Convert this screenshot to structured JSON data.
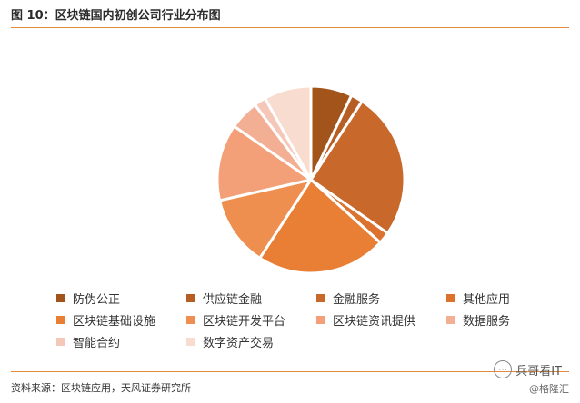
{
  "header": {
    "title": "图 10：区块链国内初创公司行业分布图"
  },
  "source": "资料来源：区块链应用，天风证券研究所",
  "watermark": {
    "name": "兵哥看IT",
    "sub": "@格隆汇",
    "icon": "chat-bubble-icon"
  },
  "chart_data": {
    "type": "pie",
    "categories": [
      "防伪公正",
      "供应链金融",
      "金融服务",
      "其他应用",
      "区块链基础设施",
      "区块链开发平台",
      "区块链资讯提供",
      "数据服务",
      "智能合约",
      "数字资产交易"
    ],
    "values": [
      7,
      2,
      25,
      2,
      22,
      12,
      13,
      5,
      2,
      8
    ],
    "colors": [
      "#a3541a",
      "#b65e23",
      "#c8682b",
      "#dc722e",
      "#e87f35",
      "#ee8f4f",
      "#f3a078",
      "#f3af93",
      "#f5c7b8",
      "#f8dccf"
    ],
    "legend_position": "bottom"
  }
}
